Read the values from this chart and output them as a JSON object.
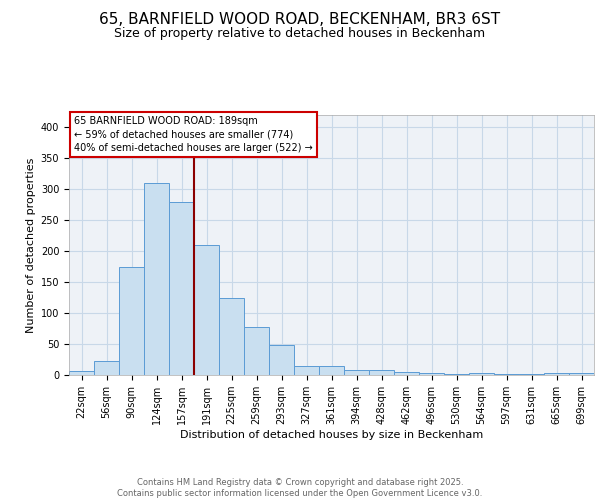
{
  "title_line1": "65, BARNFIELD WOOD ROAD, BECKENHAM, BR3 6ST",
  "title_line2": "Size of property relative to detached houses in Beckenham",
  "xlabel": "Distribution of detached houses by size in Beckenham",
  "ylabel": "Number of detached properties",
  "bar_labels": [
    "22sqm",
    "56sqm",
    "90sqm",
    "124sqm",
    "157sqm",
    "191sqm",
    "225sqm",
    "259sqm",
    "293sqm",
    "327sqm",
    "361sqm",
    "394sqm",
    "428sqm",
    "462sqm",
    "496sqm",
    "530sqm",
    "564sqm",
    "597sqm",
    "631sqm",
    "665sqm",
    "699sqm"
  ],
  "bar_values": [
    7,
    22,
    175,
    310,
    280,
    210,
    125,
    78,
    48,
    15,
    14,
    8,
    8,
    5,
    3,
    1,
    4,
    1,
    1,
    4,
    4
  ],
  "bar_color": "#c9dff0",
  "bar_edge_color": "#5b9bd5",
  "vline_x": 4.5,
  "vline_color": "#8b0000",
  "annotation_text": "65 BARNFIELD WOOD ROAD: 189sqm\n← 59% of detached houses are smaller (774)\n40% of semi-detached houses are larger (522) →",
  "annotation_box_color": "#ffffff",
  "annotation_box_edge": "#cc0000",
  "ylim": [
    0,
    420
  ],
  "yticks": [
    0,
    50,
    100,
    150,
    200,
    250,
    300,
    350,
    400
  ],
  "grid_color": "#c8d8e8",
  "background_color": "#eef2f7",
  "footer_text": "Contains HM Land Registry data © Crown copyright and database right 2025.\nContains public sector information licensed under the Open Government Licence v3.0.",
  "title_fontsize": 11,
  "subtitle_fontsize": 9,
  "axis_label_fontsize": 8,
  "tick_fontsize": 7,
  "footer_fontsize": 6,
  "annotation_fontsize": 7
}
